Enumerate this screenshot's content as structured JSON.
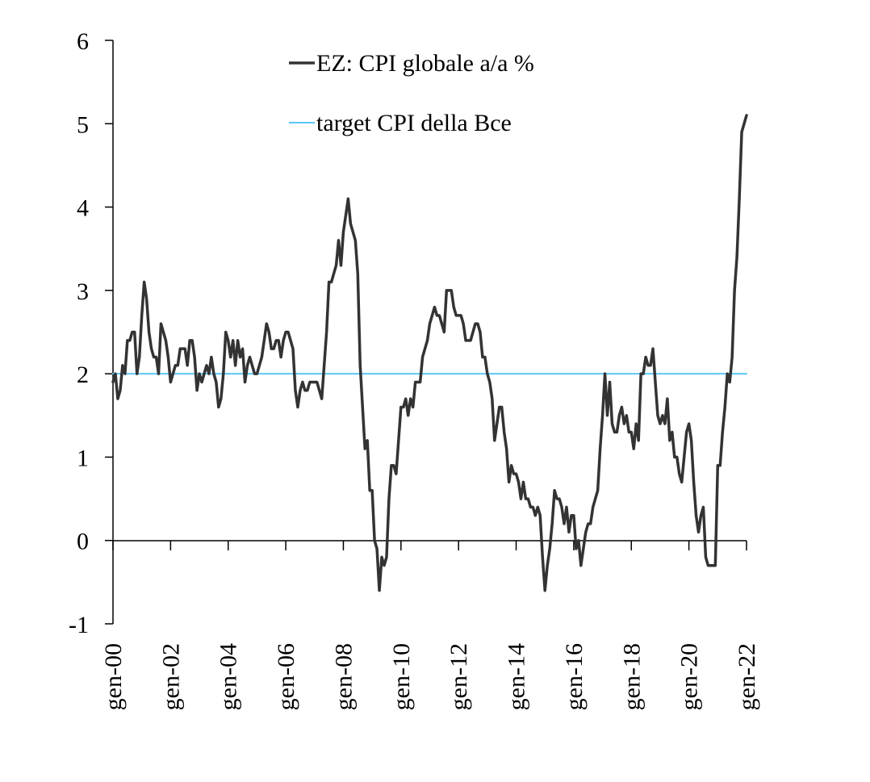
{
  "chart_data": {
    "type": "line",
    "title": "",
    "xlabel": "",
    "ylabel": "",
    "ylim": [
      -1,
      6
    ],
    "yticks": [
      -1,
      0,
      1,
      2,
      3,
      4,
      5,
      6
    ],
    "xlim": [
      "2000-01",
      "2022-01"
    ],
    "xticks": [
      {
        "date": "2000-01",
        "label": "gen-00"
      },
      {
        "date": "2002-01",
        "label": "gen-02"
      },
      {
        "date": "2004-01",
        "label": "gen-04"
      },
      {
        "date": "2006-01",
        "label": "gen-06"
      },
      {
        "date": "2008-01",
        "label": "gen-08"
      },
      {
        "date": "2010-01",
        "label": "gen-10"
      },
      {
        "date": "2012-01",
        "label": "gen-12"
      },
      {
        "date": "2014-01",
        "label": "gen-14"
      },
      {
        "date": "2016-01",
        "label": "gen-16"
      },
      {
        "date": "2018-01",
        "label": "gen-18"
      },
      {
        "date": "2020-01",
        "label": "gen-20"
      },
      {
        "date": "2022-01",
        "label": "gen-22"
      }
    ],
    "grid": false,
    "legend_position": "top-center",
    "series": [
      {
        "name": "EZ: CPI globale a/a %",
        "color": "#333333",
        "points": [
          [
            "2000-01",
            1.9
          ],
          [
            "2000-02",
            2.0
          ],
          [
            "2000-03",
            1.7
          ],
          [
            "2000-04",
            1.8
          ],
          [
            "2000-05",
            2.1
          ],
          [
            "2000-06",
            2.0
          ],
          [
            "2000-07",
            2.4
          ],
          [
            "2000-08",
            2.4
          ],
          [
            "2000-09",
            2.5
          ],
          [
            "2000-10",
            2.5
          ],
          [
            "2000-11",
            2.0
          ],
          [
            "2000-12",
            2.2
          ],
          [
            "2001-01",
            2.7
          ],
          [
            "2001-02",
            3.1
          ],
          [
            "2001-03",
            2.9
          ],
          [
            "2001-04",
            2.5
          ],
          [
            "2001-05",
            2.3
          ],
          [
            "2001-06",
            2.2
          ],
          [
            "2001-07",
            2.2
          ],
          [
            "2001-08",
            2.0
          ],
          [
            "2001-09",
            2.6
          ],
          [
            "2001-10",
            2.5
          ],
          [
            "2001-11",
            2.4
          ],
          [
            "2001-12",
            2.2
          ],
          [
            "2002-01",
            1.9
          ],
          [
            "2002-02",
            2.0
          ],
          [
            "2002-03",
            2.1
          ],
          [
            "2002-04",
            2.1
          ],
          [
            "2002-05",
            2.3
          ],
          [
            "2002-06",
            2.3
          ],
          [
            "2002-07",
            2.3
          ],
          [
            "2002-08",
            2.1
          ],
          [
            "2002-09",
            2.4
          ],
          [
            "2002-10",
            2.4
          ],
          [
            "2002-11",
            2.2
          ],
          [
            "2002-12",
            1.8
          ],
          [
            "2003-01",
            2.0
          ],
          [
            "2003-02",
            1.9
          ],
          [
            "2003-03",
            2.0
          ],
          [
            "2003-04",
            2.1
          ],
          [
            "2003-05",
            2.0
          ],
          [
            "2003-06",
            2.2
          ],
          [
            "2003-07",
            2.0
          ],
          [
            "2003-08",
            1.9
          ],
          [
            "2003-09",
            1.6
          ],
          [
            "2003-10",
            1.7
          ],
          [
            "2003-11",
            2.0
          ],
          [
            "2003-12",
            2.5
          ],
          [
            "2004-01",
            2.4
          ],
          [
            "2004-02",
            2.2
          ],
          [
            "2004-03",
            2.4
          ],
          [
            "2004-04",
            2.1
          ],
          [
            "2004-05",
            2.4
          ],
          [
            "2004-06",
            2.2
          ],
          [
            "2004-07",
            2.3
          ],
          [
            "2004-08",
            1.9
          ],
          [
            "2004-09",
            2.1
          ],
          [
            "2004-10",
            2.2
          ],
          [
            "2004-11",
            2.1
          ],
          [
            "2004-12",
            2.0
          ],
          [
            "2005-01",
            2.0
          ],
          [
            "2005-02",
            2.1
          ],
          [
            "2005-03",
            2.2
          ],
          [
            "2005-04",
            2.4
          ],
          [
            "2005-05",
            2.6
          ],
          [
            "2005-06",
            2.5
          ],
          [
            "2005-07",
            2.3
          ],
          [
            "2005-08",
            2.3
          ],
          [
            "2005-09",
            2.4
          ],
          [
            "2005-10",
            2.4
          ],
          [
            "2005-11",
            2.2
          ],
          [
            "2005-12",
            2.4
          ],
          [
            "2006-01",
            2.5
          ],
          [
            "2006-02",
            2.5
          ],
          [
            "2006-03",
            2.4
          ],
          [
            "2006-04",
            2.3
          ],
          [
            "2006-05",
            1.8
          ],
          [
            "2006-06",
            1.6
          ],
          [
            "2006-07",
            1.8
          ],
          [
            "2006-08",
            1.9
          ],
          [
            "2006-09",
            1.8
          ],
          [
            "2006-10",
            1.8
          ],
          [
            "2006-11",
            1.9
          ],
          [
            "2006-12",
            1.9
          ],
          [
            "2007-01",
            1.9
          ],
          [
            "2007-02",
            1.9
          ],
          [
            "2007-03",
            1.8
          ],
          [
            "2007-04",
            1.7
          ],
          [
            "2007-05",
            2.1
          ],
          [
            "2007-06",
            2.5
          ],
          [
            "2007-07",
            3.1
          ],
          [
            "2007-08",
            3.1
          ],
          [
            "2007-09",
            3.2
          ],
          [
            "2007-10",
            3.3
          ],
          [
            "2007-11",
            3.6
          ],
          [
            "2007-12",
            3.3
          ],
          [
            "2008-01",
            3.7
          ],
          [
            "2008-02",
            3.9
          ],
          [
            "2008-03",
            4.1
          ],
          [
            "2008-04",
            3.8
          ],
          [
            "2008-05",
            3.7
          ],
          [
            "2008-06",
            3.6
          ],
          [
            "2008-07",
            3.2
          ],
          [
            "2008-08",
            2.1
          ],
          [
            "2008-09",
            1.6
          ],
          [
            "2008-10",
            1.1
          ],
          [
            "2008-11",
            1.2
          ],
          [
            "2008-12",
            0.6
          ],
          [
            "2009-01",
            0.6
          ],
          [
            "2009-02",
            0.0
          ],
          [
            "2009-03",
            -0.1
          ],
          [
            "2009-04",
            -0.6
          ],
          [
            "2009-05",
            -0.2
          ],
          [
            "2009-06",
            -0.3
          ],
          [
            "2009-07",
            -0.2
          ],
          [
            "2009-08",
            0.5
          ],
          [
            "2009-09",
            0.9
          ],
          [
            "2009-10",
            0.9
          ],
          [
            "2009-11",
            0.8
          ],
          [
            "2009-12",
            1.2
          ],
          [
            "2010-01",
            1.6
          ],
          [
            "2010-02",
            1.6
          ],
          [
            "2010-03",
            1.7
          ],
          [
            "2010-04",
            1.5
          ],
          [
            "2010-05",
            1.7
          ],
          [
            "2010-06",
            1.6
          ],
          [
            "2010-07",
            1.9
          ],
          [
            "2010-08",
            1.9
          ],
          [
            "2010-09",
            1.9
          ],
          [
            "2010-10",
            2.2
          ],
          [
            "2010-11",
            2.3
          ],
          [
            "2010-12",
            2.4
          ],
          [
            "2011-01",
            2.6
          ],
          [
            "2011-02",
            2.7
          ],
          [
            "2011-03",
            2.8
          ],
          [
            "2011-04",
            2.7
          ],
          [
            "2011-05",
            2.7
          ],
          [
            "2011-06",
            2.6
          ],
          [
            "2011-07",
            2.5
          ],
          [
            "2011-08",
            3.0
          ],
          [
            "2011-09",
            3.0
          ],
          [
            "2011-10",
            3.0
          ],
          [
            "2011-11",
            2.8
          ],
          [
            "2011-12",
            2.7
          ],
          [
            "2012-01",
            2.7
          ],
          [
            "2012-02",
            2.7
          ],
          [
            "2012-03",
            2.6
          ],
          [
            "2012-04",
            2.4
          ],
          [
            "2012-05",
            2.4
          ],
          [
            "2012-06",
            2.4
          ],
          [
            "2012-07",
            2.5
          ],
          [
            "2012-08",
            2.6
          ],
          [
            "2012-09",
            2.6
          ],
          [
            "2012-10",
            2.5
          ],
          [
            "2012-11",
            2.2
          ],
          [
            "2012-12",
            2.2
          ],
          [
            "2013-01",
            2.0
          ],
          [
            "2013-02",
            1.9
          ],
          [
            "2013-03",
            1.7
          ],
          [
            "2013-04",
            1.2
          ],
          [
            "2013-05",
            1.4
          ],
          [
            "2013-06",
            1.6
          ],
          [
            "2013-07",
            1.6
          ],
          [
            "2013-08",
            1.3
          ],
          [
            "2013-09",
            1.1
          ],
          [
            "2013-10",
            0.7
          ],
          [
            "2013-11",
            0.9
          ],
          [
            "2013-12",
            0.8
          ],
          [
            "2014-01",
            0.8
          ],
          [
            "2014-02",
            0.7
          ],
          [
            "2014-03",
            0.5
          ],
          [
            "2014-04",
            0.7
          ],
          [
            "2014-05",
            0.5
          ],
          [
            "2014-06",
            0.5
          ],
          [
            "2014-07",
            0.4
          ],
          [
            "2014-08",
            0.4
          ],
          [
            "2014-09",
            0.3
          ],
          [
            "2014-10",
            0.4
          ],
          [
            "2014-11",
            0.3
          ],
          [
            "2014-12",
            -0.2
          ],
          [
            "2015-01",
            -0.6
          ],
          [
            "2015-02",
            -0.3
          ],
          [
            "2015-03",
            -0.1
          ],
          [
            "2015-04",
            0.2
          ],
          [
            "2015-05",
            0.6
          ],
          [
            "2015-06",
            0.5
          ],
          [
            "2015-07",
            0.5
          ],
          [
            "2015-08",
            0.4
          ],
          [
            "2015-09",
            0.2
          ],
          [
            "2015-10",
            0.4
          ],
          [
            "2015-11",
            0.1
          ],
          [
            "2015-12",
            0.3
          ],
          [
            "2016-01",
            0.3
          ],
          [
            "2016-02",
            -0.1
          ],
          [
            "2016-03",
            0.0
          ],
          [
            "2016-04",
            -0.3
          ],
          [
            "2016-05",
            -0.1
          ],
          [
            "2016-06",
            0.1
          ],
          [
            "2016-07",
            0.2
          ],
          [
            "2016-08",
            0.2
          ],
          [
            "2016-09",
            0.4
          ],
          [
            "2016-10",
            0.5
          ],
          [
            "2016-11",
            0.6
          ],
          [
            "2016-12",
            1.1
          ],
          [
            "2017-01",
            1.5
          ],
          [
            "2017-02",
            2.0
          ],
          [
            "2017-03",
            1.5
          ],
          [
            "2017-04",
            1.9
          ],
          [
            "2017-05",
            1.4
          ],
          [
            "2017-06",
            1.3
          ],
          [
            "2017-07",
            1.3
          ],
          [
            "2017-08",
            1.5
          ],
          [
            "2017-09",
            1.6
          ],
          [
            "2017-10",
            1.4
          ],
          [
            "2017-11",
            1.5
          ],
          [
            "2017-12",
            1.3
          ],
          [
            "2018-01",
            1.3
          ],
          [
            "2018-02",
            1.1
          ],
          [
            "2018-03",
            1.4
          ],
          [
            "2018-04",
            1.2
          ],
          [
            "2018-05",
            2.0
          ],
          [
            "2018-06",
            2.0
          ],
          [
            "2018-07",
            2.2
          ],
          [
            "2018-08",
            2.1
          ],
          [
            "2018-09",
            2.1
          ],
          [
            "2018-10",
            2.3
          ],
          [
            "2018-11",
            1.9
          ],
          [
            "2018-12",
            1.5
          ],
          [
            "2019-01",
            1.4
          ],
          [
            "2019-02",
            1.5
          ],
          [
            "2019-03",
            1.4
          ],
          [
            "2019-04",
            1.7
          ],
          [
            "2019-05",
            1.2
          ],
          [
            "2019-06",
            1.3
          ],
          [
            "2019-07",
            1.0
          ],
          [
            "2019-08",
            1.0
          ],
          [
            "2019-09",
            0.8
          ],
          [
            "2019-10",
            0.7
          ],
          [
            "2019-11",
            1.0
          ],
          [
            "2019-12",
            1.3
          ],
          [
            "2020-01",
            1.4
          ],
          [
            "2020-02",
            1.2
          ],
          [
            "2020-03",
            0.7
          ],
          [
            "2020-04",
            0.3
          ],
          [
            "2020-05",
            0.1
          ],
          [
            "2020-06",
            0.3
          ],
          [
            "2020-07",
            0.4
          ],
          [
            "2020-08",
            -0.2
          ],
          [
            "2020-09",
            -0.3
          ],
          [
            "2020-10",
            -0.3
          ],
          [
            "2020-11",
            -0.3
          ],
          [
            "2020-12",
            -0.3
          ],
          [
            "2021-01",
            0.9
          ],
          [
            "2021-02",
            0.9
          ],
          [
            "2021-03",
            1.3
          ],
          [
            "2021-04",
            1.6
          ],
          [
            "2021-05",
            2.0
          ],
          [
            "2021-06",
            1.9
          ],
          [
            "2021-07",
            2.2
          ],
          [
            "2021-08",
            3.0
          ],
          [
            "2021-09",
            3.4
          ],
          [
            "2021-10",
            4.1
          ],
          [
            "2021-11",
            4.9
          ],
          [
            "2021-12",
            5.0
          ],
          [
            "2022-01",
            5.1
          ]
        ]
      },
      {
        "name": "target CPI della Bce",
        "color": "#5bc8f5",
        "points": [
          [
            "2000-01",
            2.0
          ],
          [
            "2022-01",
            2.0
          ]
        ]
      }
    ]
  }
}
